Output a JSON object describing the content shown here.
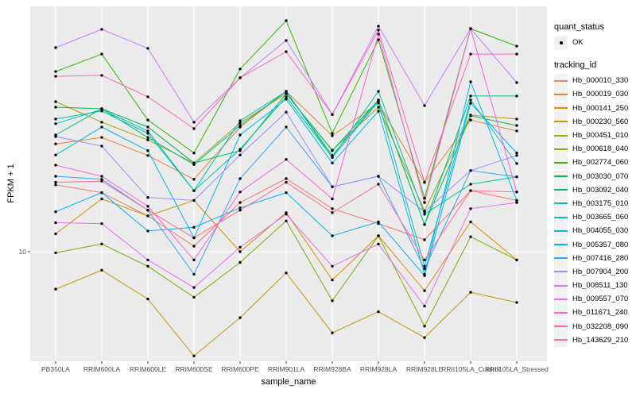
{
  "figure": {
    "background": "#FFFFFF"
  },
  "chart_data": {
    "type": "line",
    "title": "",
    "xlabel": "sample_name",
    "ylabel": "FPKM + 1",
    "y_scale": "log10",
    "ylim": [
      3.5,
      85
    ],
    "y_ticks": [
      {
        "label": "10",
        "value": 10
      }
    ],
    "grid": "major-white-on-grey",
    "panel": {
      "bg": "#EBEBEB",
      "grid_color": "#FFFFFF",
      "tick_color": "#333333",
      "tick_label_color": "#4D4D4D"
    },
    "points": {
      "color": "#000000",
      "shape": "circle"
    },
    "categories": [
      "PB350LA",
      "RRIM600LA",
      "RRIM600LE",
      "RRIM600SE",
      "RRIM600PE",
      "RRIM901LA",
      "RRIM928BA",
      "RRIM928LA",
      "RRIM928LE",
      "RRII105LA_Control",
      "RRII105LA_Stressed"
    ],
    "series": [
      {
        "name": "Hb_000010_330",
        "color": "#F8766D",
        "values": [
          18.0,
          16.8,
          13.7,
          10.5,
          15.4,
          19.0,
          14.6,
          12.8,
          11.1,
          17.1,
          15.7
        ]
      },
      {
        "name": "Hb_000019_030",
        "color": "#EA8331",
        "values": [
          25.8,
          27.3,
          23.3,
          18.9,
          29.9,
          40.9,
          27.7,
          36.9,
          18.4,
          31.8,
          28.9
        ]
      },
      {
        "name": "Hb_000141_250",
        "color": "#D89000",
        "values": [
          11.7,
          15.9,
          13.7,
          15.7,
          10.0,
          14.1,
          7.8,
          11.5,
          7.1,
          13.0,
          9.3
        ]
      },
      {
        "name": "Hb_000230_560",
        "color": "#C09B00",
        "values": [
          7.2,
          8.5,
          6.6,
          4.0,
          5.6,
          8.3,
          4.9,
          5.9,
          4.7,
          7.0,
          6.4
        ]
      },
      {
        "name": "Hb_000451_010",
        "color": "#A3A500",
        "values": [
          37.4,
          31.2,
          26.7,
          21.8,
          31.0,
          40.1,
          24.4,
          35.6,
          14.3,
          33.2,
          32.1
        ]
      },
      {
        "name": "Hb_000618_040",
        "color": "#7CAE00",
        "values": [
          9.9,
          10.7,
          8.8,
          6.7,
          9.1,
          13.1,
          6.5,
          11.5,
          5.2,
          11.4,
          9.3
        ]
      },
      {
        "name": "Hb_002774_060",
        "color": "#39B600",
        "values": [
          48.7,
          56.8,
          31.8,
          23.8,
          49.8,
          76.2,
          28.3,
          64.4,
          16.0,
          71.0,
          60.9
        ]
      },
      {
        "name": "Hb_003030_070",
        "color": "#00BB4E",
        "values": [
          35.6,
          35.1,
          29.9,
          21.8,
          24.3,
          40.1,
          24.3,
          37.9,
          12.7,
          33.0,
          30.3
        ]
      },
      {
        "name": "Hb_003092_040",
        "color": "#00BF7D",
        "values": [
          27.9,
          35.1,
          27.3,
          21.5,
          30.3,
          40.9,
          23.3,
          37.9,
          12.7,
          39.3,
          39.3
        ]
      },
      {
        "name": "Hb_003175_010",
        "color": "#00C1A3",
        "values": [
          32.1,
          34.4,
          28.3,
          17.1,
          24.6,
          39.0,
          22.9,
          40.9,
          13.9,
          18.1,
          19.3
        ]
      },
      {
        "name": "Hb_003665_060",
        "color": "#00BFC4",
        "values": [
          30.8,
          34.9,
          28.9,
          17.1,
          31.6,
          40.9,
          22.9,
          37.4,
          8.8,
          37.9,
          21.7
        ]
      },
      {
        "name": "Hb_004055_030",
        "color": "#00BAE0",
        "values": [
          23.4,
          29.9,
          24.3,
          11.3,
          27.9,
          38.2,
          21.8,
          34.4,
          8.2,
          44.5,
          15.7
        ]
      },
      {
        "name": "Hb_005357_080",
        "color": "#00B0F6",
        "values": [
          14.2,
          16.8,
          12.0,
          12.4,
          14.7,
          16.8,
          11.5,
          13.0,
          8.1,
          36.9,
          23.8
        ]
      },
      {
        "name": "Hb_007416_280",
        "color": "#35A2FF",
        "values": [
          19.4,
          18.9,
          14.4,
          8.2,
          19.0,
          29.9,
          17.7,
          19.4,
          8.6,
          20.4,
          19.3
        ]
      },
      {
        "name": "Hb_007904_200",
        "color": "#9590FF",
        "values": [
          27.5,
          25.3,
          16.1,
          15.7,
          23.4,
          34.1,
          17.7,
          19.4,
          14.2,
          20.4,
          23.3
        ]
      },
      {
        "name": "Hb_008511_130",
        "color": "#C77CFF",
        "values": [
          60.1,
          70.6,
          59.7,
          31.2,
          46.1,
          64.0,
          33.4,
          72.6,
          36.1,
          71.0,
          44.2
        ]
      },
      {
        "name": "Hb_009557_070",
        "color": "#E76BF3",
        "values": [
          12.9,
          12.8,
          9.3,
          7.3,
          10.4,
          13.9,
          8.8,
          10.7,
          6.2,
          14.6,
          15.4
        ]
      },
      {
        "name": "Hb_011671_240",
        "color": "#FA62DB",
        "values": [
          21.4,
          19.4,
          14.9,
          9.3,
          16.9,
          22.5,
          15.9,
          67.7,
          15.4,
          71.0,
          16.9
        ]
      },
      {
        "name": "Hb_032208_090",
        "color": "#FF62BC",
        "values": [
          46.7,
          47.1,
          39.0,
          29.5,
          46.1,
          58.0,
          33.4,
          70.1,
          18.4,
          56.8,
          56.8
        ]
      },
      {
        "name": "Hb_143629_210",
        "color": "#FF6A98",
        "values": [
          18.4,
          18.6,
          14.4,
          11.3,
          14.4,
          18.4,
          14.1,
          18.1,
          9.3,
          17.1,
          16.9
        ]
      }
    ],
    "legend": {
      "position": "right",
      "groups": [
        {
          "title": "quant_status",
          "items": [
            {
              "label": "OK",
              "type": "point",
              "color": "#000000"
            }
          ]
        },
        {
          "title": "tracking_id",
          "items_from_series": true
        }
      ]
    }
  }
}
